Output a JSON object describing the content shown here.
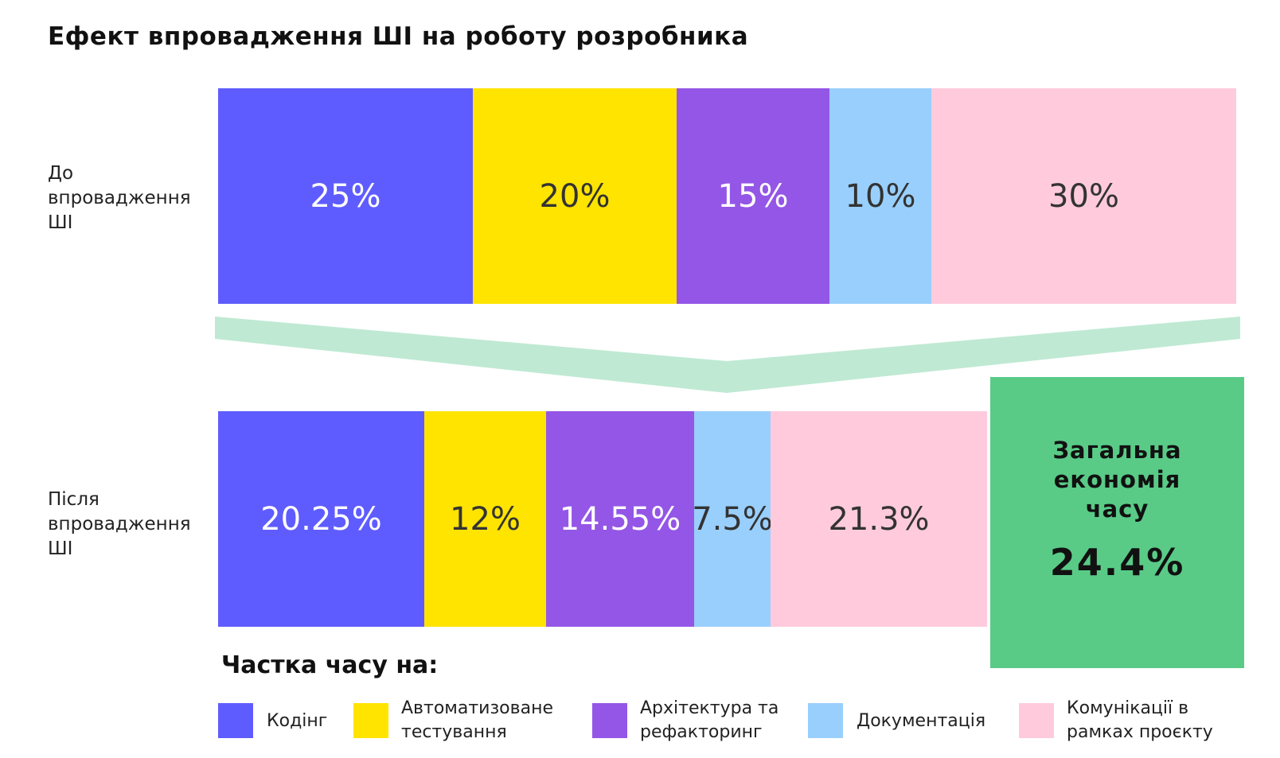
{
  "title": "Ефект впровадження ШІ на роботу розробника",
  "chart_data": {
    "type": "bar",
    "stacked": true,
    "orientation": "horizontal",
    "categories": [
      "До впровадження ШІ",
      "Після впровадження ШІ"
    ],
    "series": [
      {
        "name": "Кодінг",
        "color": "#5f5cff",
        "text_color": "#ffffff",
        "values": [
          25,
          20.25
        ],
        "labels": [
          "25%",
          "20.25%"
        ]
      },
      {
        "name": "Автоматизоване тестування",
        "color": "#ffe400",
        "text_color": "#333333",
        "values": [
          20,
          12
        ],
        "labels": [
          "20%",
          "12%"
        ]
      },
      {
        "name": "Архітектура та рефакторинг",
        "color": "#9456e6",
        "text_color": "#ffffff",
        "values": [
          15,
          14.55
        ],
        "labels": [
          "15%",
          "14.55%"
        ]
      },
      {
        "name": "Документація",
        "color": "#99cffd",
        "text_color": "#333333",
        "values": [
          10,
          7.5
        ],
        "labels": [
          "10%",
          "7.5%"
        ]
      },
      {
        "name": "Комунікації в рамках проєкту",
        "color": "#ffcbdc",
        "text_color": "#333333",
        "values": [
          30,
          21.3
        ],
        "labels": [
          "30%",
          "21.3%"
        ]
      }
    ],
    "xlim": [
      0,
      100
    ],
    "legend_title": "Частка часу на:",
    "legend_position": "bottom"
  },
  "rows": [
    {
      "label_lines": [
        "До",
        "впровадження",
        "ШІ"
      ]
    },
    {
      "label_lines": [
        "Після",
        "впровадження",
        "ШІ"
      ]
    }
  ],
  "legend_lines": [
    [
      "Кодінг"
    ],
    [
      "Автоматизоване",
      "тестування"
    ],
    [
      "Архітектура та",
      "рефакторинг"
    ],
    [
      "Документація"
    ],
    [
      "Комунікації в",
      "рамках проєкту"
    ]
  ],
  "savings": {
    "label_lines": [
      "Загальна",
      "економія",
      "часу"
    ],
    "value": "24.4%",
    "color": "#59cb87"
  },
  "colors": {
    "arrow": "#bfe9d3"
  }
}
